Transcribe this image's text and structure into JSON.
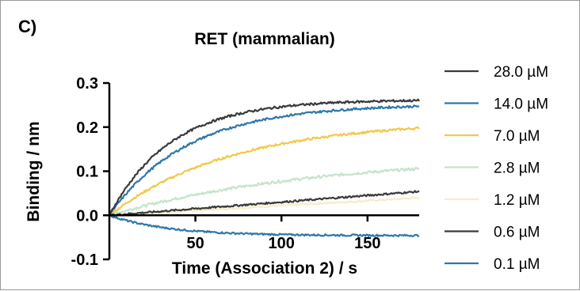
{
  "panel_label": "C)",
  "chart_data": {
    "type": "line",
    "title": "RET (mammalian)",
    "xlabel": "Time (Association 2) / s",
    "ylabel": "Binding / nm",
    "xlim": [
      0,
      180
    ],
    "ylim": [
      -0.1,
      0.3
    ],
    "x_ticks": [
      50,
      100,
      150
    ],
    "y_ticks": [
      -0.1,
      0.0,
      0.1,
      0.2,
      0.3
    ],
    "y_tick_labels": [
      "-0.1",
      "0.0",
      "0.1",
      "0.2",
      "0.3"
    ],
    "grid": false,
    "legend_position": "right",
    "series": [
      {
        "name": "28.0 µM",
        "color": "#3a3a3a",
        "model": "exp",
        "plateau": 0.262,
        "k": 0.028,
        "noise": 0.0025
      },
      {
        "name": "14.0 µM",
        "color": "#2f78a8",
        "model": "exp",
        "plateau": 0.252,
        "k": 0.022,
        "noise": 0.0025
      },
      {
        "name": "7.0 µM",
        "color": "#f2c94c",
        "model": "exp",
        "plateau": 0.215,
        "k": 0.014,
        "noise": 0.0025
      },
      {
        "name": "2.8 µM",
        "color": "#c6e3cc",
        "model": "exp",
        "plateau": 0.135,
        "k": 0.0085,
        "noise": 0.003
      },
      {
        "name": "1.2 µM",
        "color": "#f5edc8",
        "model": "lin",
        "slope": 0.00022,
        "noise": 0.002
      },
      {
        "name": "0.6 µM",
        "color": "#3a3a3a",
        "model": "lin",
        "slope": 0.0003,
        "noise": 0.002
      },
      {
        "name": "0.1 µM",
        "color": "#2f78a8",
        "model": "exp",
        "plateau": -0.046,
        "k": 0.03,
        "noise": 0.002
      }
    ]
  }
}
